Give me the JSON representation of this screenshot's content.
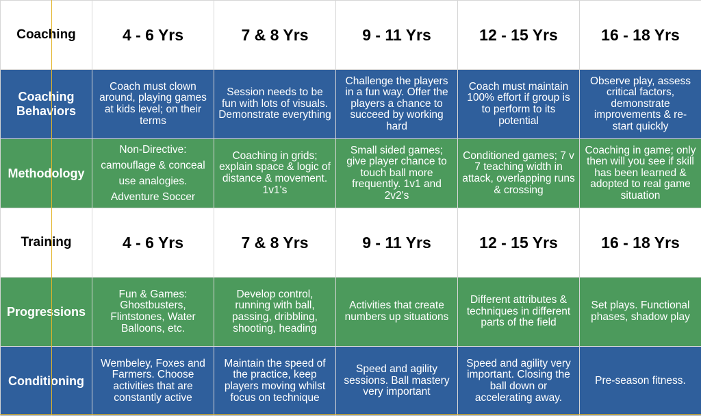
{
  "rows": [
    {
      "label": "Coaching",
      "cells": [
        "4 - 6 Yrs",
        "7 & 8 Yrs",
        "9 - 11 Yrs",
        "12 - 15 Yrs",
        "16 - 18 Yrs"
      ]
    },
    {
      "label": "Coaching Behaviors",
      "cells": [
        "Coach must clown around, playing games at kids level; on their terms",
        "Session needs to be fun with lots of visuals. Demonstrate everything",
        "Challenge the players in a fun way. Offer the players a chance to succeed by working hard",
        "Coach must maintain 100% effort if group is to perform to its potential",
        "Observe play, assess critical factors, demonstrate improvements & re-start quickly"
      ]
    },
    {
      "label": "Methodology",
      "cells": [
        "Non-Directive: camouflage & conceal use analogies. Adventure Soccer",
        "Coaching in grids; explain space & logic of distance & movement. 1v1's",
        "Small sided games; give player chance to touch ball more frequently. 1v1 and 2v2's",
        "Conditioned games; 7 v 7 teaching width in attack, overlapping runs & crossing",
        "Coaching in game; only then will you see if skill has been learned & adopted to real game situation"
      ]
    },
    {
      "label": "Training",
      "cells": [
        "4 - 6 Yrs",
        "7 & 8 Yrs",
        "9 - 11 Yrs",
        "12 - 15 Yrs",
        "16 - 18 Yrs"
      ]
    },
    {
      "label": "Progressions",
      "cells": [
        "Fun & Games: Ghostbusters, Flintstones, Water Balloons, etc.",
        "Develop control, running with ball, passing, dribbling, shooting, heading",
        "Activities that create numbers up situations",
        "Different attributes & techniques in different parts of the field",
        "Set plays. Functional phases, shadow play"
      ]
    },
    {
      "label": "Conditioning",
      "cells": [
        "Wembeley, Foxes and Farmers. Choose activities that are constantly active",
        "Maintain the speed of the practice, keep players moving whilst focus on technique",
        "Speed and agility sessions. Ball mastery very important",
        "Speed and agility very important. Closing the ball down or accelerating away.",
        "Pre-season fitness."
      ]
    }
  ],
  "colors": {
    "header_bg": "#ffffff",
    "blue_row": "#2f5f9c",
    "green_row": "#4c9a5c",
    "guide_line": "#e3b52a"
  }
}
